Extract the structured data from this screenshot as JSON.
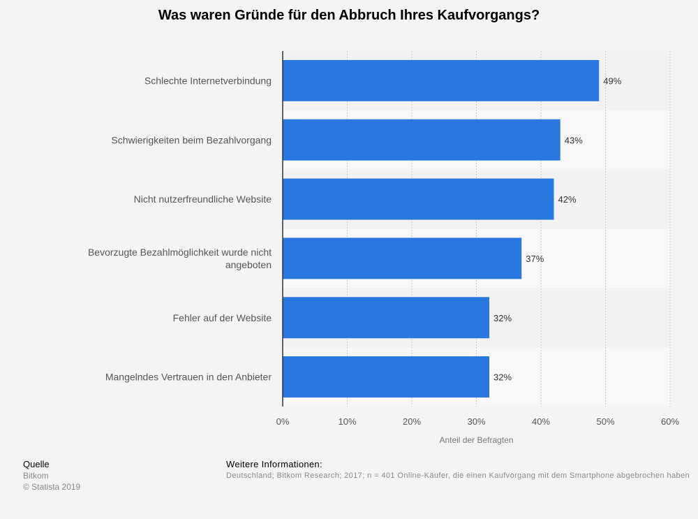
{
  "chart_data": {
    "type": "bar",
    "orientation": "horizontal",
    "title": "Was waren Gründe für den Abbruch Ihres Kaufvorgangs?",
    "xlabel": "Anteil der Befragten",
    "ylabel": "",
    "xlim": [
      0,
      60
    ],
    "x_ticks": [
      "0%",
      "10%",
      "20%",
      "30%",
      "40%",
      "50%",
      "60%"
    ],
    "categories": [
      [
        "Schlechte Internetverbindung"
      ],
      [
        "Schwierigkeiten beim Bezahlvorgang"
      ],
      [
        "Nicht nutzerfreundliche Website"
      ],
      [
        "Bevorzugte Bezahlmöglichkeit wurde nicht",
        "angeboten"
      ],
      [
        "Fehler auf der Website"
      ],
      [
        "Mangelndes Vertrauen in den Anbieter"
      ]
    ],
    "values": [
      49,
      43,
      42,
      37,
      32,
      32
    ],
    "value_labels": [
      "49%",
      "43%",
      "42%",
      "37%",
      "32%",
      "32%"
    ],
    "bar_color": "#2878e0",
    "grid": true
  },
  "footer": {
    "source_heading": "Quelle",
    "source_name": "Bitkom",
    "copyright": "© Statista 2019",
    "info_heading": "Weitere Informationen:",
    "info_text": "Deutschland; Bitkom Research; 2017; n = 401 Online-Käufer, die einen Kaufvorgang mit dem Smartphone abgebrochen haben"
  }
}
